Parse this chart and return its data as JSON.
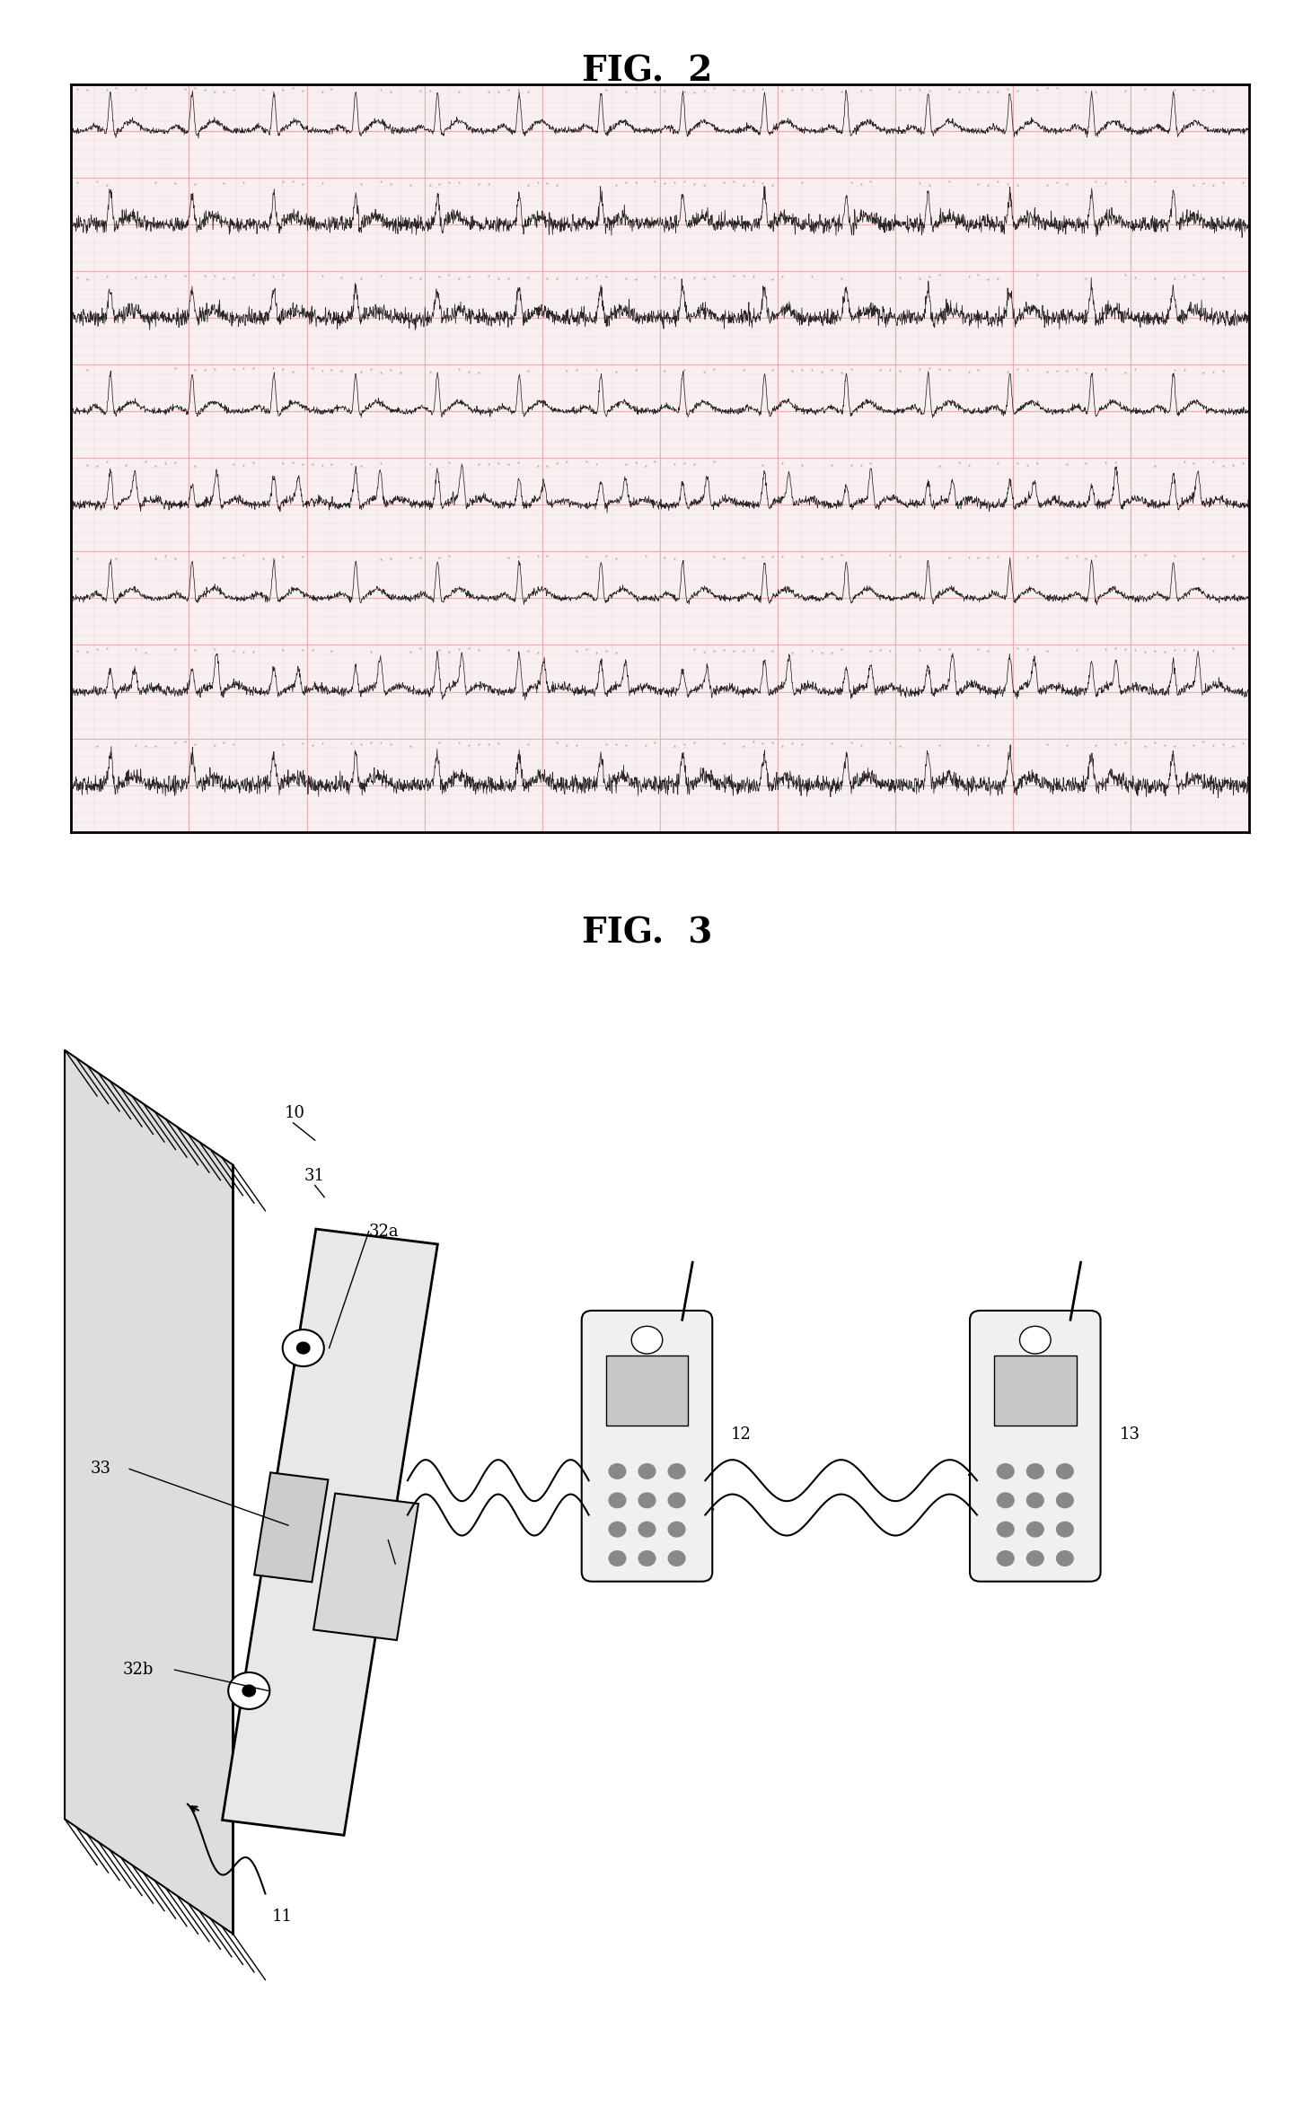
{
  "fig2_title": "FIG.  2",
  "fig3_title": "FIG.  3",
  "background_color": "#ffffff",
  "ecg_paper_color": "#f8f0f0",
  "ecg_grid_major_color": "#e8b0b0",
  "ecg_grid_minor_color": "#f0d0d0",
  "ecg_line_color": "#111111",
  "n_ecg_rows": 8,
  "n_samples": 3000
}
